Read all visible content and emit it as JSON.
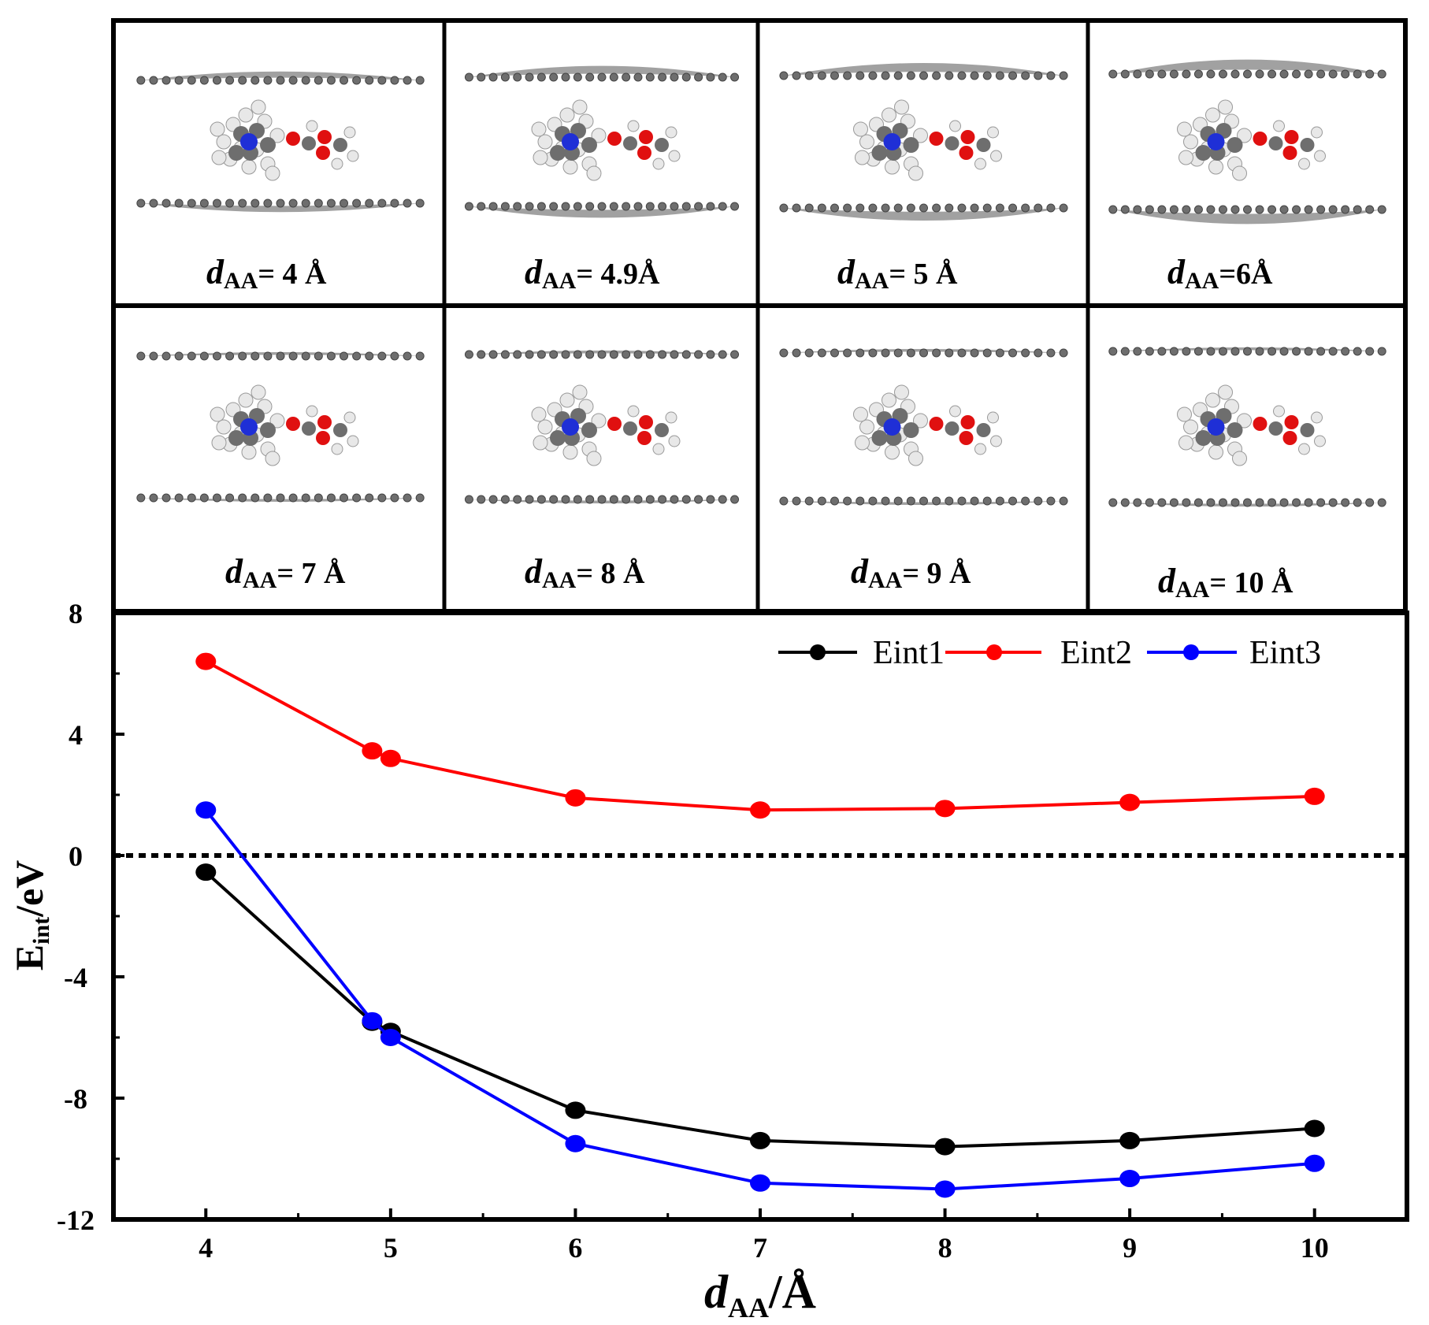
{
  "panels": [
    {
      "label_prefix": "d",
      "label_sub": "AA",
      "label_value": "= 4 Å",
      "d": 4
    },
    {
      "label_prefix": "d",
      "label_sub": "AA",
      "label_value": "= 4.9Å",
      "d": 4.9
    },
    {
      "label_prefix": "d",
      "label_sub": "AA",
      "label_value": "= 5 Å",
      "d": 5
    },
    {
      "label_prefix": "d",
      "label_sub": "AA",
      "label_value": "=6Å",
      "d": 6
    },
    {
      "label_prefix": "d",
      "label_sub": "AA",
      "label_value": "= 7 Å",
      "d": 7
    },
    {
      "label_prefix": "d",
      "label_sub": "AA",
      "label_value": "= 8 Å",
      "d": 8
    },
    {
      "label_prefix": "d",
      "label_sub": "AA",
      "label_value": "= 9 Å",
      "d": 9
    },
    {
      "label_prefix": "d",
      "label_sub": "AA",
      "label_value": "= 10 Å",
      "d": 10
    }
  ],
  "colors": {
    "eint1": "#000000",
    "eint2": "#ff0000",
    "eint3": "#0000ff",
    "carbon": "#6e6e6e",
    "hydrogen": "#e8e8e8",
    "nitrogen": "#1f2fd6",
    "oxygen": "#e01010"
  },
  "chart_data": {
    "type": "line",
    "x": [
      4,
      4.9,
      5,
      6,
      7,
      8,
      9,
      10
    ],
    "series": [
      {
        "name": "Eint1",
        "color": "#000000",
        "values": [
          -0.55,
          -5.5,
          -5.8,
          -8.4,
          -9.4,
          -9.6,
          -9.4,
          -9.0
        ]
      },
      {
        "name": "Eint2",
        "color": "#ff0000",
        "values": [
          6.4,
          3.45,
          3.2,
          1.9,
          1.5,
          1.55,
          1.75,
          1.95
        ]
      },
      {
        "name": "Eint3",
        "color": "#0000ff",
        "values": [
          1.5,
          -5.45,
          -6.0,
          -9.5,
          -10.8,
          -11.0,
          -10.65,
          -10.15
        ]
      }
    ],
    "xlabel_main": "d",
    "xlabel_sub": "AA",
    "xlabel_unit": "/Å",
    "ylabel_main": "E",
    "ylabel_sub": "int",
    "ylabel_unit": "/eV",
    "xlim": [
      3.5,
      10.5
    ],
    "ylim": [
      -12,
      8
    ],
    "xticks": [
      4,
      5,
      6,
      7,
      8,
      9,
      10
    ],
    "yticks": [
      8,
      4,
      0,
      -4,
      -8,
      -12
    ],
    "ytick_labels": [
      "8",
      "4",
      "0",
      "-4",
      "-8",
      "-12"
    ],
    "reference_line": 0,
    "legend_position": "top-right"
  }
}
